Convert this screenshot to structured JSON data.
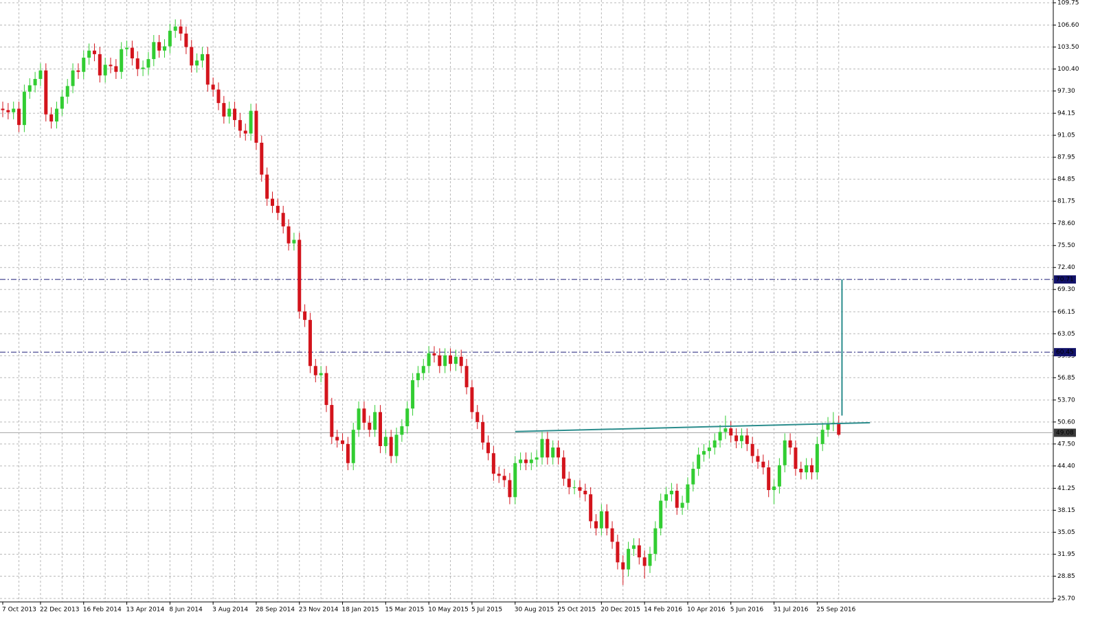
{
  "chart_data": {
    "type": "candlestick",
    "categories": [
      "7 Oct 2013",
      null,
      null,
      null,
      null,
      null,
      null,
      "22 Dec 2013",
      null,
      null,
      null,
      null,
      null,
      null,
      null,
      "16 Feb 2014",
      null,
      null,
      null,
      null,
      null,
      null,
      null,
      "13 Apr 2014",
      null,
      null,
      null,
      null,
      null,
      null,
      null,
      "8 Jun 2014",
      null,
      null,
      null,
      null,
      null,
      null,
      null,
      "3 Aug 2014",
      null,
      null,
      null,
      null,
      null,
      null,
      null,
      "28 Sep 2014",
      null,
      null,
      null,
      null,
      null,
      null,
      null,
      "23 Nov 2014",
      null,
      null,
      null,
      null,
      null,
      null,
      null,
      "18 Jan 2015",
      null,
      null,
      null,
      null,
      null,
      null,
      null,
      "15 Mar 2015",
      null,
      null,
      null,
      null,
      null,
      null,
      null,
      "10 May 2015",
      null,
      null,
      null,
      null,
      null,
      null,
      null,
      "5 Jul 2015",
      null,
      null,
      null,
      null,
      null,
      null,
      null,
      "30 Aug 2015",
      null,
      null,
      null,
      null,
      null,
      null,
      null,
      "25 Oct 2015",
      null,
      null,
      null,
      null,
      null,
      null,
      null,
      "20 Dec 2015",
      null,
      null,
      null,
      null,
      null,
      null,
      null,
      "14 Feb 2016",
      null,
      null,
      null,
      null,
      null,
      null,
      null,
      "10 Apr 2016",
      null,
      null,
      null,
      null,
      null,
      null,
      null,
      "5 Jun 2016",
      null,
      null,
      null,
      null,
      null,
      null,
      null,
      "31 Jul 2016",
      null,
      null,
      null,
      null,
      null,
      null,
      null,
      "25 Sep 2016",
      null,
      null,
      null,
      null
    ],
    "open": [
      94.8,
      94.6,
      94.3,
      94.8,
      92.5,
      97.2,
      98.1,
      99.0,
      100.2,
      94.0,
      93.0,
      94.8,
      96.5,
      98.0,
      100.2,
      100.0,
      102.0,
      103.0,
      102.5,
      99.5,
      101.0,
      100.8,
      100.0,
      103.2,
      103.4,
      101.9,
      100.4,
      100.6,
      101.8,
      104.2,
      103.0,
      103.6,
      105.8,
      106.4,
      105.4,
      103.5,
      100.9,
      101.6,
      102.5,
      98.2,
      97.5,
      95.6,
      93.7,
      94.8,
      93.2,
      91.7,
      91.3,
      94.5,
      90.0,
      85.5,
      82.1,
      81.1,
      80.1,
      78.2,
      75.8,
      76.3,
      66.2,
      65.0,
      58.5,
      57.2,
      57.5,
      53.0,
      48.5,
      48.0,
      47.5,
      44.8,
      49.5,
      52.5,
      50.5,
      49.5,
      52.0,
      47.2,
      48.5,
      45.8,
      48.8,
      50.0,
      52.5,
      56.5,
      57.5,
      58.5,
      60.3,
      60.0,
      58.5,
      60.0,
      58.8,
      59.8,
      58.5,
      55.5,
      52.0,
      50.6,
      47.7,
      46.2,
      43.3,
      43.0,
      42.4,
      40.0,
      44.8,
      45.3,
      44.8,
      45.3,
      45.6,
      48.2,
      45.6,
      47.0,
      45.6,
      42.6,
      41.4,
      41.4,
      40.9,
      40.4,
      36.6,
      35.6,
      38.0,
      35.6,
      33.7,
      30.8,
      29.8,
      32.7,
      33.2,
      31.5,
      30.3,
      32.0,
      35.6,
      39.5,
      40.4,
      40.9,
      38.5,
      39.2,
      41.8,
      44.0,
      46.0,
      46.5,
      47.0,
      48.0,
      49.2,
      49.7,
      48.7,
      47.9,
      48.7,
      47.5,
      45.8,
      45.0,
      44.2,
      41.0,
      41.5,
      44.5,
      48.0,
      47.0,
      44.0,
      43.5,
      44.5,
      43.5,
      47.5,
      49.5,
      50.3,
      50.5
    ],
    "high": [
      95.8,
      95.6,
      95.8,
      95.8,
      98.2,
      99.1,
      100.0,
      101.2,
      101.2,
      95.0,
      95.8,
      97.5,
      99.0,
      101.2,
      101.2,
      103.0,
      104.0,
      104.0,
      103.5,
      102.0,
      102.0,
      101.8,
      104.2,
      104.4,
      104.4,
      102.9,
      101.6,
      102.8,
      105.2,
      105.2,
      104.6,
      106.8,
      107.4,
      107.4,
      106.4,
      104.5,
      102.6,
      103.5,
      103.5,
      99.2,
      98.5,
      96.6,
      95.8,
      95.8,
      94.2,
      92.7,
      95.5,
      95.5,
      91.0,
      86.5,
      83.1,
      82.1,
      81.1,
      79.2,
      77.3,
      77.3,
      67.2,
      66.0,
      59.5,
      58.5,
      58.5,
      54.0,
      49.5,
      49.0,
      48.5,
      50.5,
      53.5,
      53.5,
      51.5,
      53.0,
      53.0,
      49.5,
      49.5,
      49.8,
      51.0,
      53.5,
      57.5,
      58.5,
      59.5,
      61.3,
      61.3,
      61.0,
      61.0,
      61.0,
      60.8,
      60.8,
      59.5,
      56.5,
      53.0,
      51.6,
      48.7,
      47.2,
      44.3,
      44.0,
      43.4,
      45.8,
      46.3,
      46.3,
      46.3,
      46.6,
      49.2,
      49.2,
      48.0,
      48.0,
      46.6,
      43.6,
      42.4,
      42.4,
      41.9,
      41.4,
      37.6,
      39.0,
      39.0,
      36.6,
      34.7,
      31.8,
      33.7,
      34.2,
      34.2,
      32.5,
      33.0,
      36.6,
      40.5,
      41.4,
      42.0,
      41.9,
      40.2,
      42.8,
      45.0,
      47.0,
      47.5,
      48.0,
      49.0,
      50.2,
      51.5,
      50.7,
      49.7,
      49.7,
      49.7,
      48.5,
      46.8,
      46.0,
      45.2,
      42.5,
      45.5,
      49.0,
      49.0,
      48.0,
      45.0,
      45.5,
      45.5,
      48.5,
      50.5,
      51.3,
      52.0,
      51.5
    ],
    "low": [
      93.6,
      93.3,
      93.3,
      91.5,
      91.5,
      96.2,
      97.1,
      98.0,
      93.0,
      92.0,
      92.0,
      93.8,
      95.5,
      97.0,
      99.0,
      99.0,
      101.0,
      101.5,
      98.5,
      98.5,
      99.8,
      99.0,
      99.0,
      102.2,
      100.9,
      99.4,
      99.4,
      99.6,
      100.8,
      102.0,
      102.0,
      102.6,
      104.8,
      104.4,
      102.5,
      99.9,
      99.9,
      100.6,
      97.2,
      96.5,
      94.6,
      92.7,
      92.7,
      92.2,
      90.7,
      90.3,
      90.3,
      89.0,
      84.5,
      81.1,
      80.1,
      79.1,
      77.2,
      74.8,
      74.8,
      65.2,
      64.0,
      57.5,
      56.2,
      56.2,
      52.0,
      47.5,
      47.0,
      46.5,
      43.8,
      43.8,
      48.5,
      49.5,
      48.5,
      48.5,
      46.2,
      46.2,
      44.8,
      44.8,
      47.8,
      49.0,
      51.5,
      55.5,
      56.5,
      57.5,
      59.0,
      57.5,
      57.5,
      57.8,
      57.8,
      57.5,
      54.5,
      51.0,
      49.6,
      46.7,
      45.2,
      42.3,
      42.0,
      41.4,
      39.0,
      39.0,
      43.8,
      43.8,
      43.8,
      44.3,
      44.6,
      44.6,
      44.6,
      44.6,
      41.6,
      40.4,
      40.4,
      39.9,
      39.4,
      35.6,
      34.6,
      34.6,
      34.6,
      32.7,
      29.8,
      27.6,
      28.8,
      31.7,
      30.5,
      28.5,
      29.3,
      31.0,
      34.6,
      38.5,
      39.4,
      37.5,
      37.5,
      38.2,
      40.8,
      43.0,
      45.0,
      45.5,
      46.0,
      47.0,
      48.2,
      47.7,
      46.9,
      46.9,
      46.5,
      44.8,
      44.0,
      43.2,
      40.0,
      39.0,
      40.5,
      43.5,
      46.0,
      43.0,
      42.5,
      42.5,
      42.5,
      42.5,
      46.5,
      48.5,
      49.3,
      48.6
    ],
    "close": [
      94.6,
      94.3,
      94.8,
      92.5,
      97.2,
      98.1,
      99.0,
      100.2,
      94.0,
      93.0,
      94.8,
      96.5,
      98.0,
      100.2,
      100.0,
      102.0,
      103.0,
      102.5,
      99.5,
      101.0,
      100.8,
      100.0,
      103.2,
      103.4,
      101.9,
      100.4,
      100.6,
      101.8,
      104.2,
      103.0,
      103.6,
      105.8,
      106.4,
      105.4,
      103.5,
      100.9,
      101.6,
      102.5,
      98.2,
      97.5,
      95.6,
      93.7,
      94.8,
      93.2,
      91.7,
      91.3,
      94.5,
      90.0,
      85.5,
      82.1,
      81.1,
      80.1,
      78.2,
      75.8,
      76.3,
      66.2,
      65.0,
      58.5,
      57.2,
      57.5,
      53.0,
      48.5,
      48.0,
      47.5,
      44.8,
      49.5,
      52.5,
      50.5,
      49.5,
      52.0,
      47.2,
      48.5,
      45.8,
      48.8,
      50.0,
      52.5,
      56.5,
      57.5,
      58.5,
      60.3,
      60.0,
      58.5,
      60.0,
      58.8,
      59.8,
      58.5,
      55.5,
      52.0,
      50.6,
      47.7,
      46.2,
      43.3,
      43.0,
      42.4,
      40.0,
      44.8,
      45.3,
      44.8,
      45.3,
      45.6,
      48.2,
      45.6,
      47.0,
      45.6,
      42.6,
      41.4,
      41.4,
      40.9,
      40.4,
      36.6,
      35.6,
      38.0,
      35.6,
      33.7,
      30.8,
      29.8,
      32.7,
      33.2,
      31.5,
      30.3,
      32.0,
      35.6,
      39.5,
      40.4,
      40.9,
      38.5,
      39.2,
      41.8,
      44.0,
      46.0,
      46.5,
      47.0,
      48.0,
      49.2,
      49.7,
      48.7,
      47.9,
      48.7,
      47.5,
      45.8,
      45.0,
      44.2,
      41.0,
      41.5,
      44.5,
      48.0,
      47.0,
      44.0,
      43.5,
      44.5,
      43.5,
      47.5,
      49.5,
      50.3,
      50.5,
      48.8
    ],
    "up_color": "#32cd32",
    "down_color": "#d3141c",
    "ylim": [
      25.7,
      109.75
    ],
    "yticks": [
      109.75,
      {
        "value": 106.6,
        "label": "106.60"
      },
      {
        "value": 103.5,
        "label": "103.50"
      },
      {
        "value": 100.4,
        "label": "100.40"
      },
      {
        "value": 97.3,
        "label": "97.30"
      },
      94.15,
      91.05,
      87.95,
      84.85,
      81.75,
      {
        "value": 78.6,
        "label": "78.60"
      },
      {
        "value": 75.5,
        "label": "75.50"
      },
      {
        "value": 72.4,
        "label": "72.40"
      },
      {
        "value": 69.3,
        "label": "69.30"
      },
      66.15,
      63.05,
      59.95,
      56.85,
      {
        "value": 53.7,
        "label": "53.70"
      },
      {
        "value": 50.6,
        "label": "50.60"
      },
      {
        "value": 47.5,
        "label": "47.50"
      },
      {
        "value": 44.4,
        "label": "44.40"
      },
      41.25,
      38.15,
      35.05,
      31.95,
      28.85,
      {
        "value": 25.7,
        "label": "25.70"
      }
    ],
    "grid": true,
    "levels": [
      {
        "value": 70.71,
        "line": "dash-dot",
        "color": "#1c1c78",
        "box_color": "#12126a"
      },
      {
        "value": 60.45,
        "line": "dash-dot",
        "color": "#1c1c78",
        "box_color": "#12126a"
      },
      {
        "value": 49.08,
        "line": "solid",
        "color": "#a8a8a8",
        "box_color": "#3a3a3a"
      }
    ],
    "trendline": {
      "values": [
        49.25,
        50.5
      ],
      "color": "#2a8c8c"
    },
    "projection_start": 51.5
  }
}
